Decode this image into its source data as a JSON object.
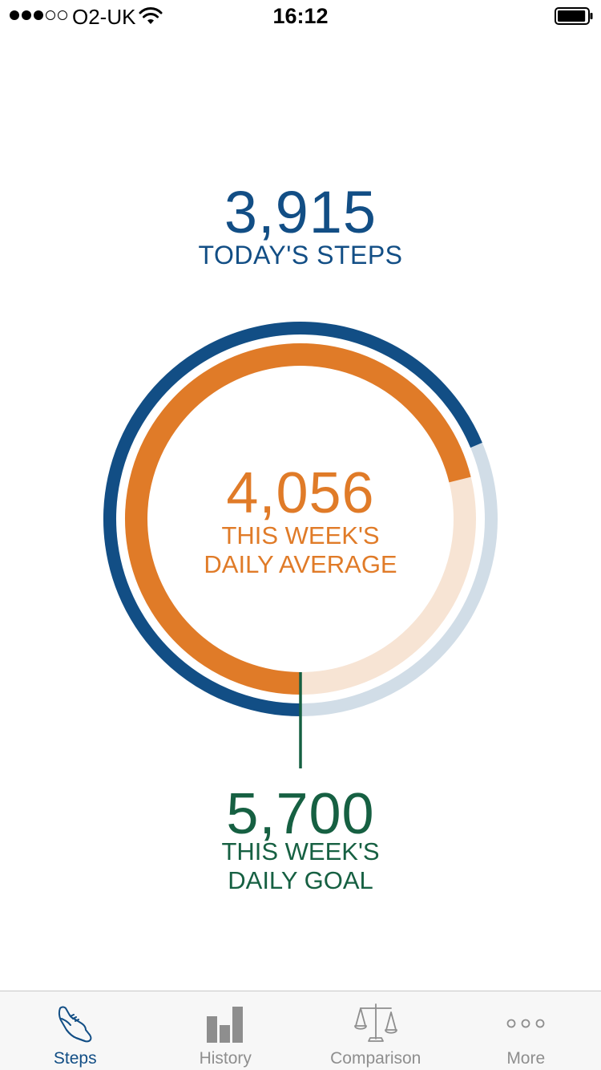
{
  "status_bar": {
    "signal_filled": 3,
    "signal_total": 5,
    "carrier": "O2-UK",
    "time": "16:12",
    "battery_level": 0.95
  },
  "today": {
    "value": "3,915",
    "label": "TODAY'S STEPS",
    "steps": 3915
  },
  "average": {
    "value": "4,056",
    "label": "THIS WEEK'S\nDAILY AVERAGE",
    "steps": 4056
  },
  "goal": {
    "value": "5,700",
    "label": "THIS WEEK'S\nDAILY GOAL",
    "steps": 5700
  },
  "colors": {
    "today": "#124e85",
    "today_track": "#d1dde7",
    "average": "#e07b28",
    "average_track": "#f7e4d4",
    "goal": "#166042",
    "tab_inactive": "#8e8e8e"
  },
  "tabs": [
    {
      "label": "Steps",
      "icon": "shoe-icon",
      "active": true
    },
    {
      "label": "History",
      "icon": "bar-chart-icon",
      "active": false
    },
    {
      "label": "Comparison",
      "icon": "scales-icon",
      "active": false
    },
    {
      "label": "More",
      "icon": "ellipsis-icon",
      "active": false
    }
  ]
}
